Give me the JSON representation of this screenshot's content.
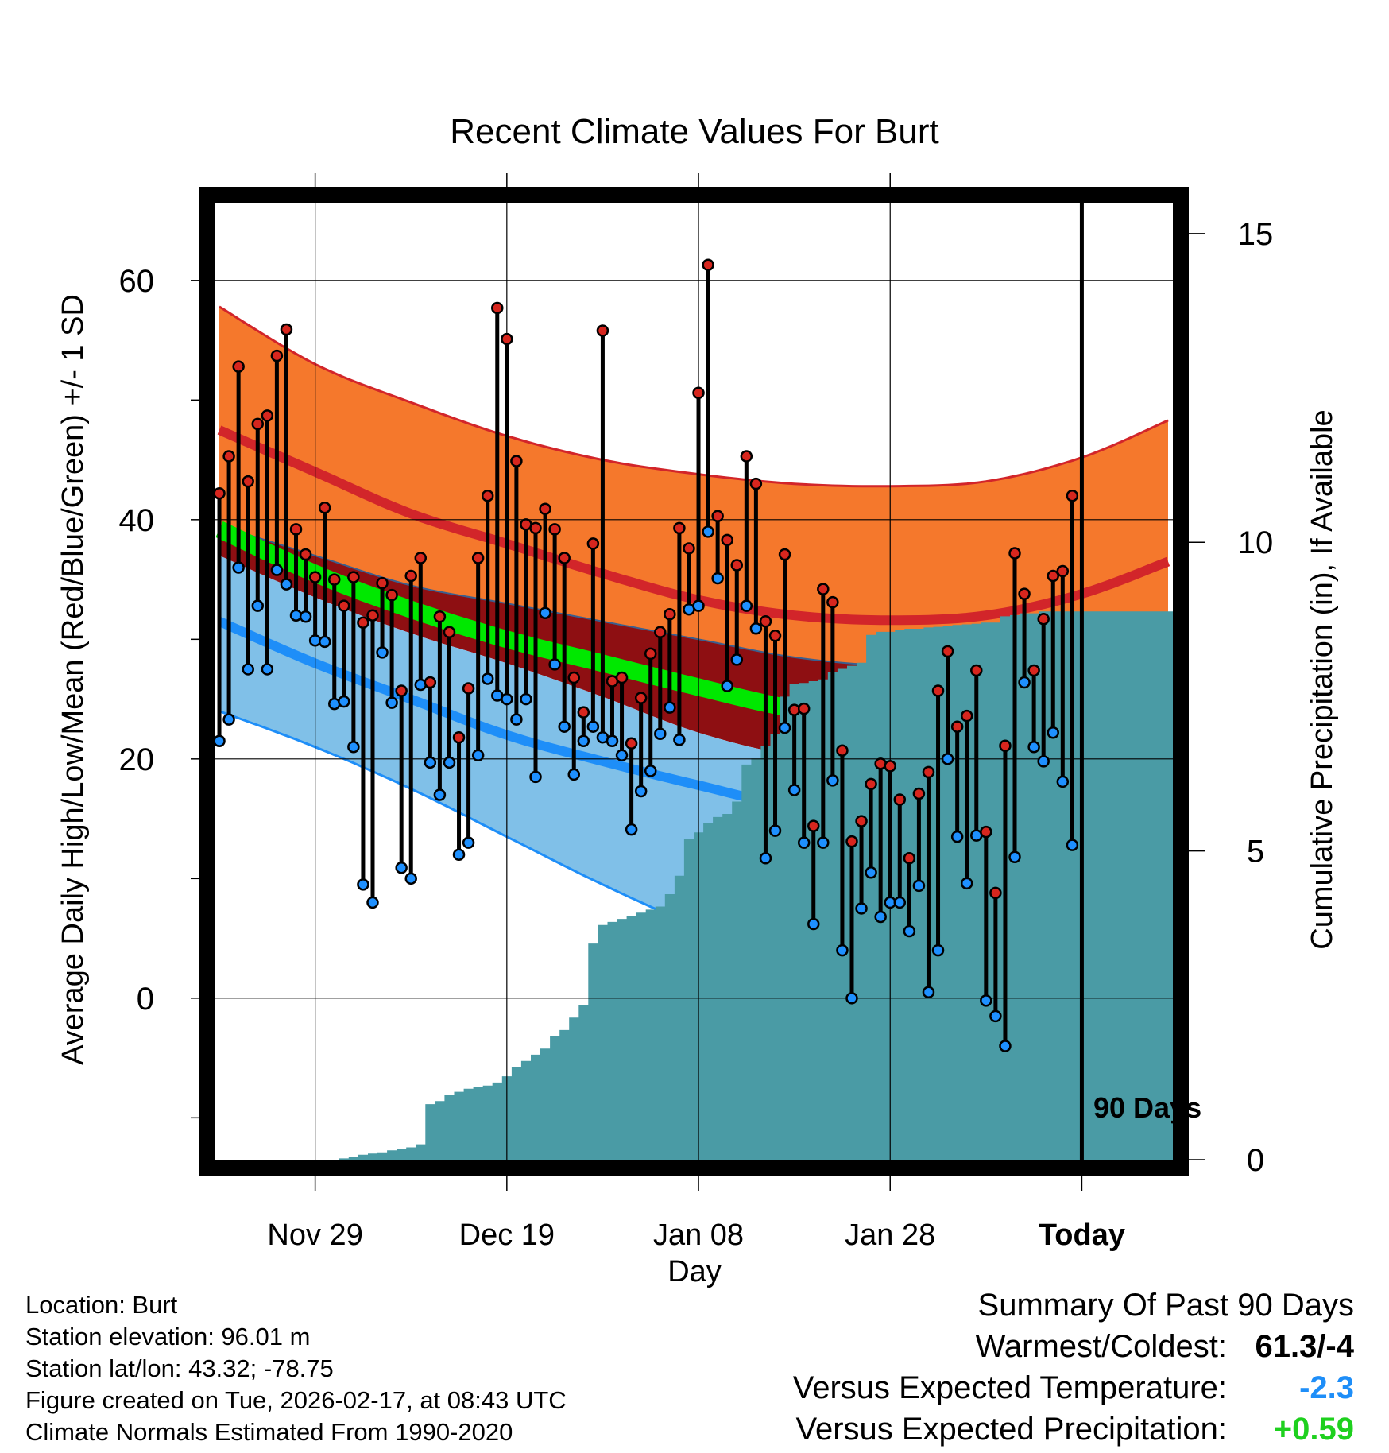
{
  "chart_data": {
    "type": "line",
    "title": "Recent Climate Values For Burt",
    "xlabel": "Day",
    "ylabel": "Average Daily High/Low/Mean (Red/Blue/Green) +/- 1 SD",
    "y2label": "Cumulative Precipitation (in), If Available",
    "x_tick_labels": [
      "Nov 29",
      "Dec 19",
      "Jan 08",
      "Jan 28",
      "Today"
    ],
    "x_tick_days": [
      10,
      30,
      50,
      70,
      90
    ],
    "xlim": [
      -0.5,
      99.5
    ],
    "ylim": [
      -13.5,
      66.5
    ],
    "y_ticks": [
      0,
      20,
      40,
      60
    ],
    "y2_ticks": [
      0,
      5,
      10,
      15
    ],
    "y2lim": [
      0,
      15.5
    ],
    "today_marker_label": "90 Days",
    "normals": {
      "day": [
        0,
        10,
        20,
        30,
        40,
        50,
        60,
        70,
        80,
        90,
        99
      ],
      "high_upper": [
        57.8,
        53,
        49.8,
        47,
        45,
        43.8,
        43,
        42.8,
        43.2,
        45.2,
        48.3
      ],
      "high_mean": [
        47.5,
        44,
        40.5,
        38,
        35.5,
        33.3,
        32,
        31.6,
        32,
        33.8,
        36.5
      ],
      "mean_upper": [
        39.5,
        37,
        34.5,
        33,
        31.5,
        30,
        28.5,
        27.8,
        28,
        29.3,
        31.5
      ],
      "mean": [
        39.2,
        35.5,
        32.5,
        30,
        28,
        26,
        24.2,
        23.5,
        23.8,
        25.8,
        28.2
      ],
      "mean_lower": [
        37,
        33.5,
        30.5,
        28,
        25.2,
        22.2,
        20.3,
        20,
        20.7,
        22.5,
        24.8
      ],
      "low_mean": [
        31.5,
        28,
        25,
        22,
        19.8,
        17.8,
        16,
        15.4,
        16,
        17.8,
        19.7
      ],
      "low_lower": [
        24,
        21,
        17.5,
        13.5,
        9.5,
        6,
        3.7,
        3.5,
        4.2,
        5.8,
        8.5
      ]
    },
    "series": [
      {
        "name": "Daily High",
        "color": "#d7261e",
        "values": [
          42.2,
          45.3,
          52.8,
          43.2,
          48,
          48.7,
          53.7,
          55.9,
          39.2,
          37.1,
          35.2,
          41,
          35,
          32.8,
          35.2,
          31.4,
          32,
          34.7,
          33.7,
          25.7,
          35.3,
          36.8,
          26.4,
          31.9,
          30.6,
          21.8,
          25.9,
          36.8,
          42,
          57.7,
          55.1,
          44.9,
          39.6,
          39.3,
          40.9,
          39.2,
          36.8,
          26.8,
          23.9,
          38,
          55.8,
          26.5,
          26.8,
          21.3,
          25.1,
          28.8,
          30.6,
          32.1,
          39.3,
          37.6,
          50.6,
          61.3,
          40.3,
          38.3,
          36.2,
          45.3,
          43,
          31.5,
          30.3,
          37.1,
          24.1,
          24.2,
          14.4,
          34.2,
          33.1,
          20.7,
          13.1,
          14.8,
          17.9,
          19.6,
          19.4,
          16.6,
          11.7,
          17.1,
          18.9,
          25.7,
          29,
          22.7,
          23.6,
          27.4,
          13.9,
          8.8,
          21.1,
          37.2,
          33.8,
          27.4,
          31.7,
          35.3,
          35.7,
          42
        ]
      },
      {
        "name": "Daily Low",
        "color": "#1e90ff",
        "values": [
          21.5,
          23.3,
          36,
          27.5,
          32.8,
          27.5,
          35.8,
          34.6,
          32,
          31.9,
          29.9,
          29.8,
          24.6,
          24.8,
          21,
          9.5,
          8,
          28.9,
          24.7,
          10.9,
          10,
          26.2,
          19.7,
          17,
          19.7,
          12,
          13,
          20.3,
          26.7,
          25.3,
          25,
          23.3,
          25,
          18.5,
          32.2,
          27.9,
          22.7,
          18.7,
          21.5,
          22.7,
          21.8,
          21.5,
          20.3,
          14.1,
          17.3,
          19,
          22.1,
          24.3,
          21.6,
          32.5,
          32.8,
          39,
          35.1,
          26.1,
          28.3,
          32.8,
          30.9,
          11.7,
          14,
          22.6,
          17.4,
          13,
          6.2,
          13,
          18.2,
          4,
          0,
          7.5,
          10.5,
          6.8,
          8,
          8,
          5.6,
          9.4,
          0.5,
          4,
          20,
          13.5,
          9.6,
          13.6,
          -0.2,
          -1.5,
          -4,
          11.8,
          26.4,
          21,
          19.8,
          22.2,
          18.1,
          12.8
        ]
      },
      {
        "name": "Cumulative Precipitation",
        "color": "#4a9ba5",
        "values": [
          0,
          0,
          0,
          0,
          0,
          0,
          0,
          0,
          0,
          0,
          0,
          0,
          0,
          0.02,
          0.05,
          0.08,
          0.1,
          0.12,
          0.15,
          0.18,
          0.2,
          0.25,
          0.9,
          0.95,
          1.05,
          1.1,
          1.15,
          1.18,
          1.2,
          1.25,
          1.35,
          1.5,
          1.6,
          1.7,
          1.8,
          2,
          2.1,
          2.3,
          2.5,
          3.5,
          3.8,
          3.85,
          3.9,
          3.95,
          4,
          4.05,
          4.1,
          4.3,
          4.6,
          5.2,
          5.3,
          5.45,
          5.55,
          5.6,
          5.8,
          6.4,
          6.5,
          6.7,
          6.9,
          7.5,
          7.7,
          7.72,
          7.75,
          7.78,
          7.9,
          7.95,
          8,
          8.05,
          8.5,
          8.55,
          8.55,
          8.58,
          8.6,
          8.6,
          8.62,
          8.63,
          8.65,
          8.66,
          8.67,
          8.68,
          8.7,
          8.7,
          8.8,
          8.82,
          8.85,
          8.85,
          8.88,
          8.88,
          8.88,
          8.88,
          8.88,
          8.88,
          8.88,
          8.88,
          8.88,
          8.88,
          8.88,
          8.88,
          8.88,
          8.88
        ]
      }
    ],
    "colors": {
      "orange_band": "#f5782c",
      "high_line": "#d2252a",
      "dark_red_band": "#8e0f12",
      "green_band": "#00e800",
      "blue_band": "#80c0e8",
      "low_line": "#1e8ef8",
      "precip_fill": "#4a9ba5",
      "summary_temp": "#1e8ef8",
      "summary_precip": "#1ed01e"
    }
  },
  "info": {
    "location": "Location: Burt",
    "elevation": "Station elevation: 96.01 m",
    "latlon": "Station lat/lon: 43.32; -78.75",
    "created": "Figure created on Tue, 2026-02-17, at 08:43 UTC",
    "normals": "Climate Normals Estimated From 1990-2020"
  },
  "summary": {
    "title": "Summary Of Past 90 Days",
    "warmest_label": "Warmest/Coldest:",
    "warmest_value": "61.3/-4",
    "temp_label": "Versus Expected Temperature:",
    "temp_value": "-2.3",
    "precip_label": "Versus Expected Precipitation:",
    "precip_value": "+0.59"
  }
}
